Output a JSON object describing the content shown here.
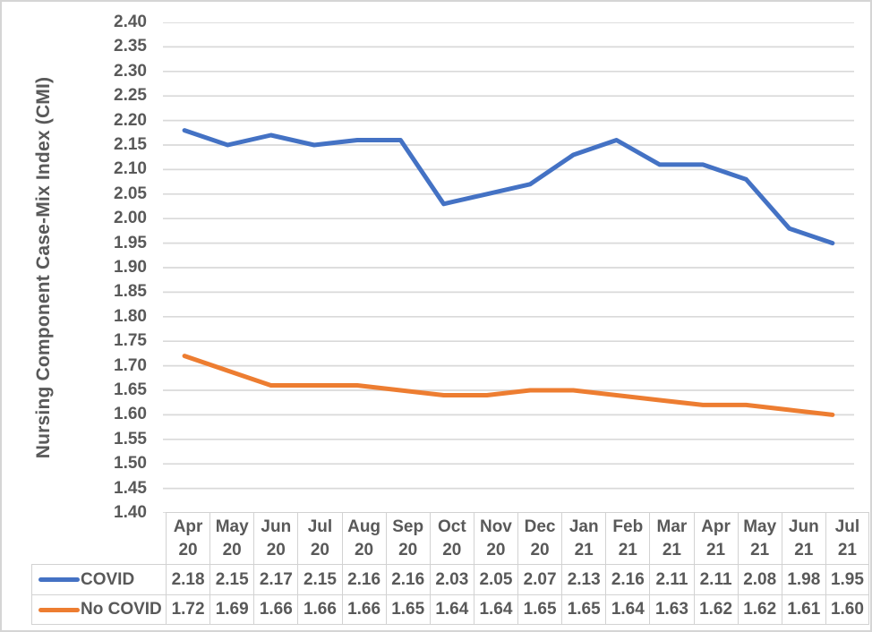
{
  "chart_data": {
    "type": "line",
    "title": "",
    "xlabel": "",
    "ylabel": "Nursing Component Case-Mix Index (CMI)",
    "categories": [
      "Apr 20",
      "May 20",
      "Jun 20",
      "Jul 20",
      "Aug 20",
      "Sep 20",
      "Oct 20",
      "Nov 20",
      "Dec 20",
      "Jan 21",
      "Feb 21",
      "Mar 21",
      "Apr 21",
      "May 21",
      "Jun 21",
      "Jul 21"
    ],
    "series": [
      {
        "name": "COVID",
        "color": "#4472C4",
        "values": [
          2.18,
          2.15,
          2.17,
          2.15,
          2.16,
          2.16,
          2.03,
          2.05,
          2.07,
          2.13,
          2.16,
          2.11,
          2.11,
          2.08,
          1.98,
          1.95
        ]
      },
      {
        "name": "No COVID",
        "color": "#ED7D31",
        "values": [
          1.72,
          1.69,
          1.66,
          1.66,
          1.66,
          1.65,
          1.64,
          1.64,
          1.65,
          1.65,
          1.64,
          1.63,
          1.62,
          1.62,
          1.61,
          1.6
        ]
      }
    ],
    "ylim": [
      1.4,
      2.4
    ],
    "ytick_step": 0.05,
    "y_tick_labels": [
      "2.40",
      "2.35",
      "2.30",
      "2.25",
      "2.20",
      "2.15",
      "2.10",
      "2.05",
      "2.00",
      "1.95",
      "1.90",
      "1.85",
      "1.80",
      "1.75",
      "1.70",
      "1.65",
      "1.60",
      "1.55",
      "1.50",
      "1.45",
      "1.40"
    ],
    "grid": true,
    "legend_position": "data-table-left",
    "data_table_shown": true,
    "decimals": 2
  },
  "colors": {
    "series_covid": "#4472C4",
    "series_no_covid": "#ED7D31",
    "text": "#595959",
    "gridline": "#D9D9D9",
    "table_border": "#D2D2D2",
    "background": "#FFFFFF"
  }
}
